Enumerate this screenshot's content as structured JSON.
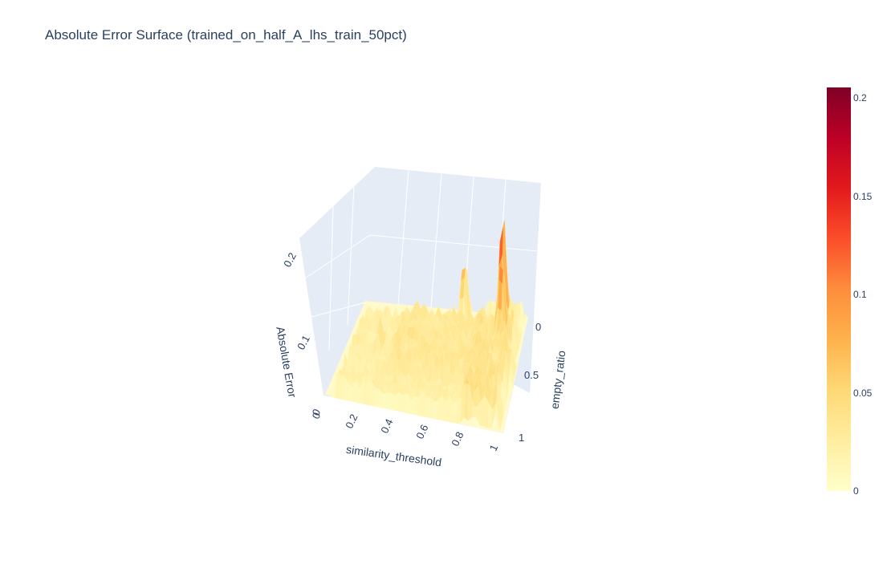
{
  "chart_data": {
    "type": "surface",
    "title": "Absolute Error Surface (trained_on_half_A_lhs_train_50pct)",
    "x_axis": {
      "label": "similarity_threshold",
      "range": [
        0,
        1
      ],
      "ticks": [
        "0",
        "0.2",
        "0.4",
        "0.6",
        "0.8",
        "1"
      ]
    },
    "y_axis": {
      "label": "empty_ratio",
      "range": [
        0,
        1
      ],
      "ticks": [
        "0",
        "0.5",
        "1"
      ]
    },
    "z_axis": {
      "label": "Absolute Error",
      "range": [
        0,
        0.2
      ],
      "ticks": [
        "0",
        "0.1",
        "0.2"
      ]
    },
    "colorscale": "YlOrRd",
    "colorbar": {
      "min": 0,
      "max": 0.205,
      "ticks": [
        "0",
        "0.05",
        "0.1",
        "0.15",
        "0.2"
      ]
    },
    "colors": {
      "low": "#ffffcc",
      "mid": "#fd8d3c",
      "high": "#800026",
      "pane": "#e5ecf6",
      "grid": "#ffffff"
    },
    "peaks": [
      {
        "similarity_threshold": 0.86,
        "empty_ratio": 0.15,
        "absolute_error": 0.205
      },
      {
        "similarity_threshold": 0.88,
        "empty_ratio": 0.3,
        "absolute_error": 0.16
      },
      {
        "similarity_threshold": 0.62,
        "empty_ratio": 0.1,
        "absolute_error": 0.105
      },
      {
        "similarity_threshold": 0.22,
        "empty_ratio": 0.55,
        "absolute_error": 0.06
      },
      {
        "similarity_threshold": 0.98,
        "empty_ratio": 0.55,
        "absolute_error": 0.04
      }
    ]
  }
}
